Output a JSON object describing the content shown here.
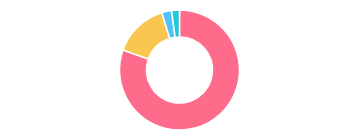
{
  "chart_data": {
    "type": "donut",
    "values": [
      76,
      14,
      2.5,
      2
    ],
    "colors": [
      "#FF6B8A",
      "#F9C74F",
      "#4FC3F7",
      "#26C6DA"
    ]
  }
}
